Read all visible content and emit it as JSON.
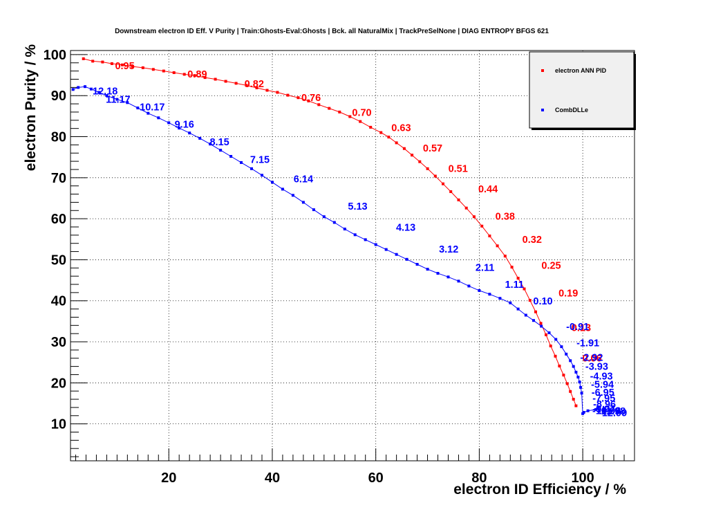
{
  "chart_data": {
    "type": "line",
    "title": "Downstream electron ID Eff. V Purity | Train:Ghosts-Eval:Ghosts | Bck. all NaturalMix | TrackPreSelNone | DIAG ENTROPY BFGS 621",
    "xlabel": "electron ID Efficiency / %",
    "ylabel": "electron Purity / %",
    "xlim": [
      1.0,
      110.0
    ],
    "ylim": [
      1.0,
      101.0
    ],
    "x_ticks": [
      20,
      40,
      60,
      80,
      100
    ],
    "y_ticks": [
      10,
      20,
      30,
      40,
      50,
      60,
      70,
      80,
      90,
      100
    ],
    "grid": true,
    "legend_position": "top-right",
    "series": [
      {
        "name": "electron ANN PID",
        "color": "#ff0000",
        "x": [
          3.5,
          5.3,
          7.2,
          9.0,
          11.0,
          13.0,
          15.0,
          17.0,
          19.0,
          21.0,
          23.0,
          25.0,
          27.0,
          29.0,
          31.0,
          33.0,
          35.0,
          37.0,
          39.0,
          41.0,
          43.0,
          45.0,
          47.0,
          49.0,
          51.0,
          53.0,
          55.0,
          57.0,
          59.0,
          61.0,
          62.5,
          64.0,
          65.5,
          67.0,
          68.5,
          70.0,
          71.5,
          73.0,
          74.5,
          76.0,
          77.5,
          79.0,
          80.5,
          82.0,
          83.5,
          85.0,
          86.3,
          87.5,
          88.7,
          89.8,
          90.9,
          91.9,
          92.9,
          93.8,
          94.7,
          95.5,
          96.3,
          97.0,
          97.6,
          98.2,
          98.7
        ],
        "y": [
          99.0,
          98.4,
          98.2,
          97.8,
          97.5,
          97.1,
          96.8,
          96.4,
          96.0,
          95.6,
          95.2,
          94.9,
          94.4,
          94.0,
          93.5,
          93.0,
          92.5,
          91.9,
          91.3,
          90.8,
          90.1,
          89.5,
          88.7,
          87.8,
          86.9,
          86.0,
          84.9,
          83.7,
          82.3,
          81.0,
          79.9,
          78.5,
          77.1,
          75.5,
          73.9,
          72.2,
          70.4,
          68.5,
          66.6,
          64.6,
          62.6,
          60.5,
          58.2,
          55.8,
          53.4,
          50.9,
          48.2,
          45.5,
          42.9,
          40.1,
          37.3,
          34.5,
          31.7,
          29.0,
          26.5,
          24.1,
          21.9,
          19.8,
          17.9,
          16.0,
          14.4
        ],
        "cut_labels": [
          {
            "x": 11.5,
            "y": 97.5,
            "text": "0.95"
          },
          {
            "x": 25.5,
            "y": 95.4,
            "text": "0.89"
          },
          {
            "x": 36.5,
            "y": 93.1,
            "text": "0.82"
          },
          {
            "x": 47.5,
            "y": 89.7,
            "text": "0.76"
          },
          {
            "x": 57.3,
            "y": 86.1,
            "text": "0.70"
          },
          {
            "x": 64.9,
            "y": 82.4,
            "text": "0.63"
          },
          {
            "x": 71.0,
            "y": 77.4,
            "text": "0.57"
          },
          {
            "x": 75.9,
            "y": 72.4,
            "text": "0.51"
          },
          {
            "x": 81.7,
            "y": 67.4,
            "text": "0.44"
          },
          {
            "x": 85.0,
            "y": 60.8,
            "text": "0.38"
          },
          {
            "x": 90.2,
            "y": 55.1,
            "text": "0.32"
          },
          {
            "x": 93.9,
            "y": 48.8,
            "text": "0.25"
          },
          {
            "x": 97.2,
            "y": 42.1,
            "text": "0.19"
          },
          {
            "x": 99.7,
            "y": 33.6,
            "text": "0.13"
          },
          {
            "x": 101.8,
            "y": 26.2,
            "text": "0.06"
          }
        ]
      },
      {
        "name": "CombDLLe",
        "color": "#0000ff",
        "x": [
          1.5,
          2.5,
          3.8,
          5.0,
          6.5,
          8.0,
          10.0,
          12.0,
          14.0,
          16.0,
          18.0,
          20.0,
          22.0,
          24.0,
          26.0,
          28.0,
          30.0,
          32.0,
          34.0,
          36.0,
          38.0,
          40.0,
          42.0,
          44.0,
          46.0,
          48.0,
          50.0,
          52.0,
          54.0,
          56.0,
          58.0,
          60.0,
          62.0,
          64.0,
          66.0,
          68.0,
          70.0,
          72.0,
          74.0,
          76.0,
          78.0,
          80.0,
          82.0,
          84.0,
          86.0,
          87.5,
          89.0,
          90.5,
          92.0,
          93.5,
          94.8,
          95.9,
          96.8,
          97.6,
          98.2,
          98.7,
          99.1,
          99.4,
          99.6,
          99.8,
          100.0,
          100.2,
          101.0,
          102.5,
          104.0,
          105.5,
          106.8
        ],
        "y": [
          91.5,
          92.0,
          92.2,
          91.6,
          90.8,
          90.0,
          89.1,
          88.3,
          87.0,
          85.7,
          84.6,
          83.4,
          82.1,
          80.9,
          79.6,
          78.2,
          76.7,
          75.2,
          73.7,
          72.2,
          70.6,
          68.9,
          67.2,
          65.7,
          64.0,
          62.2,
          60.5,
          59.1,
          57.5,
          56.1,
          54.9,
          53.7,
          52.5,
          51.3,
          50.1,
          48.9,
          47.7,
          46.7,
          45.8,
          44.8,
          43.6,
          42.5,
          41.6,
          40.6,
          39.5,
          38.0,
          36.5,
          35.2,
          33.8,
          32.2,
          30.6,
          28.8,
          27.0,
          25.4,
          24.0,
          22.6,
          21.4,
          20.2,
          18.9,
          17.5,
          12.5,
          12.8,
          13.2,
          13.5,
          13.3,
          13.2,
          13.0
        ],
        "cut_labels": [
          {
            "x": 7.7,
            "y": 91.3,
            "text": "12.18"
          },
          {
            "x": 10.2,
            "y": 89.3,
            "text": "11.17"
          },
          {
            "x": 16.8,
            "y": 87.4,
            "text": "10.17"
          },
          {
            "x": 23.0,
            "y": 83.2,
            "text": "9.16"
          },
          {
            "x": 29.8,
            "y": 78.9,
            "text": "8.15"
          },
          {
            "x": 37.6,
            "y": 74.6,
            "text": "7.15"
          },
          {
            "x": 46.0,
            "y": 69.9,
            "text": "6.14"
          },
          {
            "x": 56.5,
            "y": 63.2,
            "text": "5.13"
          },
          {
            "x": 65.8,
            "y": 58.1,
            "text": "4.13"
          },
          {
            "x": 74.1,
            "y": 52.8,
            "text": "3.12"
          },
          {
            "x": 81.1,
            "y": 48.3,
            "text": "2.11"
          },
          {
            "x": 86.8,
            "y": 44.2,
            "text": "1.11"
          },
          {
            "x": 92.3,
            "y": 40.1,
            "text": "0.10"
          },
          {
            "x": 99.0,
            "y": 33.9,
            "text": "-0.91"
          },
          {
            "x": 101.0,
            "y": 29.9,
            "text": "-1.91"
          },
          {
            "x": 101.7,
            "y": 26.4,
            "text": "-2.92"
          },
          {
            "x": 102.7,
            "y": 24.2,
            "text": "-3.93"
          },
          {
            "x": 103.6,
            "y": 21.8,
            "text": "-4.93"
          },
          {
            "x": 103.8,
            "y": 19.8,
            "text": "-5.94"
          },
          {
            "x": 103.9,
            "y": 17.9,
            "text": "-6.95"
          },
          {
            "x": 104.1,
            "y": 16.4,
            "text": "-7.95"
          },
          {
            "x": 104.2,
            "y": 15.0,
            "text": "-8.96"
          },
          {
            "x": 104.1,
            "y": 13.8,
            "text": "-9.97"
          },
          {
            "x": 104.6,
            "y": 13.4,
            "text": "-10.98"
          },
          {
            "x": 105.6,
            "y": 13.3,
            "text": "-11.98"
          },
          {
            "x": 105.8,
            "y": 12.9,
            "text": "-12.99"
          }
        ]
      }
    ]
  }
}
